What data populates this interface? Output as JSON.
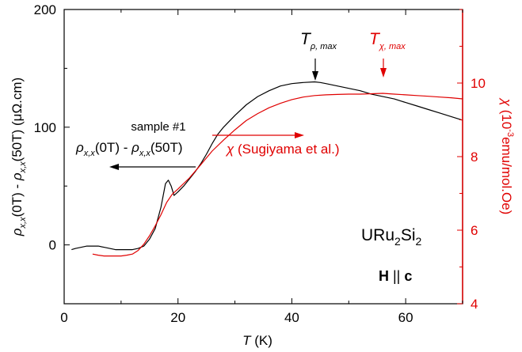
{
  "colors": {
    "left": "#000000",
    "right": "#e00000"
  },
  "chart_data": {
    "type": "line",
    "xlabel": {
      "main": "T",
      "unit": " (K)"
    },
    "ylabel_left": {
      "parts": [
        "ρ",
        "x,x",
        "(0T) - ",
        "ρ",
        "x,x",
        "(50T) (μΩ.cm)"
      ]
    },
    "ylabel_right": {
      "parts": [
        "χ",
        " (10",
        "-3",
        "emu/mol.Oe)"
      ]
    },
    "xlim": [
      0,
      70
    ],
    "ylim_left": [
      -50,
      200
    ],
    "ylim_right": [
      4,
      12
    ],
    "xticks": [
      0,
      20,
      40,
      60
    ],
    "yticks_left": [
      0,
      100,
      200
    ],
    "yticks_right": [
      4,
      6,
      8,
      10
    ],
    "series": [
      {
        "name": "ρx,x(0T) - ρx,x(50T)",
        "axis": "left",
        "color": "#000000",
        "x": [
          1.3,
          2,
          3,
          4,
          5,
          6,
          7,
          8,
          9,
          10,
          11,
          12,
          13,
          14,
          15,
          16,
          17,
          17.8,
          18.3,
          18.8,
          19.3,
          20,
          21,
          22,
          23,
          24,
          25,
          26,
          27,
          28,
          30,
          32,
          34,
          36,
          38,
          40,
          42,
          44,
          45,
          46,
          48,
          50,
          52,
          54,
          56,
          58,
          60,
          62,
          64,
          66,
          68,
          70
        ],
        "y": [
          -4,
          -3,
          -2,
          -1,
          -1,
          -1,
          -2,
          -3,
          -4,
          -4,
          -4,
          -4,
          -3,
          -1,
          5,
          14,
          32,
          52,
          55,
          50,
          42,
          45,
          50,
          56,
          62,
          69,
          77,
          86,
          94,
          100,
          110,
          119,
          126,
          131,
          135,
          137,
          138,
          138.5,
          138,
          137,
          135,
          133,
          131,
          128,
          126,
          124,
          121,
          118,
          115,
          112,
          109,
          106
        ]
      },
      {
        "name": "χ (Sugiyama et al.)",
        "axis": "right",
        "color": "#e00000",
        "x": [
          5,
          6,
          7,
          8,
          9,
          10,
          11,
          12,
          13,
          14,
          15,
          16,
          17,
          18,
          19,
          20,
          22,
          24,
          26,
          28,
          30,
          32,
          34,
          36,
          38,
          40,
          42,
          44,
          46,
          48,
          50,
          52,
          54,
          56,
          58,
          60,
          62,
          64,
          66,
          68,
          70
        ],
        "y": [
          5.35,
          5.32,
          5.3,
          5.3,
          5.3,
          5.3,
          5.32,
          5.35,
          5.45,
          5.62,
          5.85,
          6.12,
          6.42,
          6.75,
          6.98,
          7.12,
          7.42,
          7.78,
          8.15,
          8.45,
          8.73,
          8.98,
          9.17,
          9.33,
          9.45,
          9.55,
          9.62,
          9.66,
          9.68,
          9.69,
          9.7,
          9.7,
          9.71,
          9.72,
          9.7,
          9.68,
          9.66,
          9.64,
          9.62,
          9.6,
          9.57
        ]
      }
    ],
    "annotations": {
      "sample": "sample #1",
      "rho_legend": {
        "parts": [
          "ρ",
          "x,x",
          "(0T) - ",
          "ρ",
          "x,x",
          "(50T)"
        ]
      },
      "chi_legend": {
        "symbol": "χ",
        "text": " (Sugiyama et al.)"
      },
      "t_rho_max": {
        "T": "T",
        "sub": "ρ, max",
        "x": 44
      },
      "t_chi_max": {
        "T": "T",
        "sub": "χ, max",
        "x": 55.5
      },
      "compound": {
        "parts": [
          "URu",
          "2",
          "Si",
          "2"
        ]
      },
      "field": {
        "H": "H",
        "rel": " || ",
        "c": "c"
      }
    }
  }
}
